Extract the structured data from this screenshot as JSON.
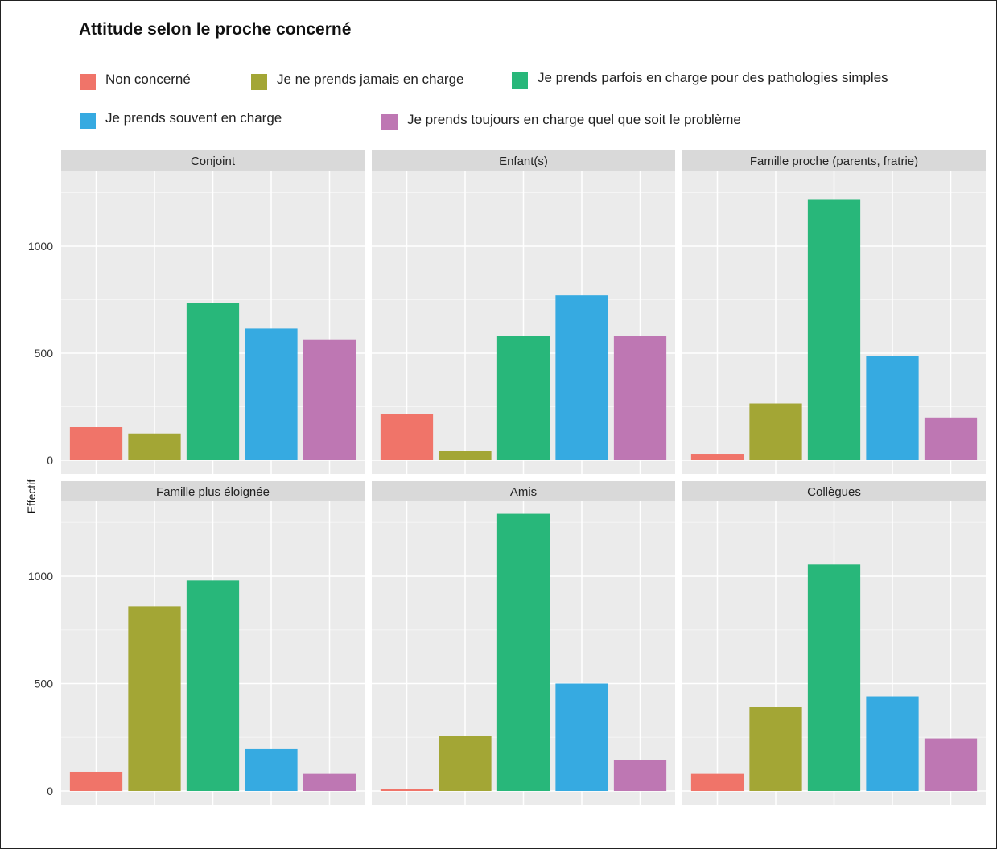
{
  "title": "Attitude selon le proche concerné",
  "colors": {
    "Non concerné": "#f07469",
    "Je ne prends jamais en charge": "#a3a635",
    "Je prends parfois en charge pour des pathologies simples": "#28b77a",
    "Je prends souvent en charge": "#36aae1",
    "Je prends toujours en charge quel que soit le problème": "#be77b3"
  },
  "chart_data": {
    "type": "bar",
    "title": "Attitude selon le proche concerné",
    "ylabel": "Effectif",
    "xlabel": "",
    "ylim": [
      0,
      1350
    ],
    "yticks": [
      "0",
      "500",
      "1000"
    ],
    "legend_position": "top",
    "grid": true,
    "categories": [
      "Non concerné",
      "Je ne prends jamais en charge",
      "Je prends parfois en charge pour des pathologies simples",
      "Je prends souvent en charge",
      "Je prends toujours en charge quel que soit le problème"
    ],
    "panels": [
      {
        "name": "Conjoint",
        "values": [
          155,
          125,
          735,
          615,
          565
        ]
      },
      {
        "name": "Enfant(s)",
        "values": [
          215,
          45,
          580,
          770,
          580
        ]
      },
      {
        "name": "Famille proche (parents, fratrie)",
        "values": [
          30,
          265,
          1220,
          485,
          200
        ]
      },
      {
        "name": "Famille plus éloignée",
        "values": [
          90,
          860,
          980,
          195,
          80
        ]
      },
      {
        "name": "Amis",
        "values": [
          10,
          255,
          1290,
          500,
          145
        ]
      },
      {
        "name": "Collègues",
        "values": [
          80,
          390,
          1055,
          440,
          245
        ]
      }
    ]
  }
}
